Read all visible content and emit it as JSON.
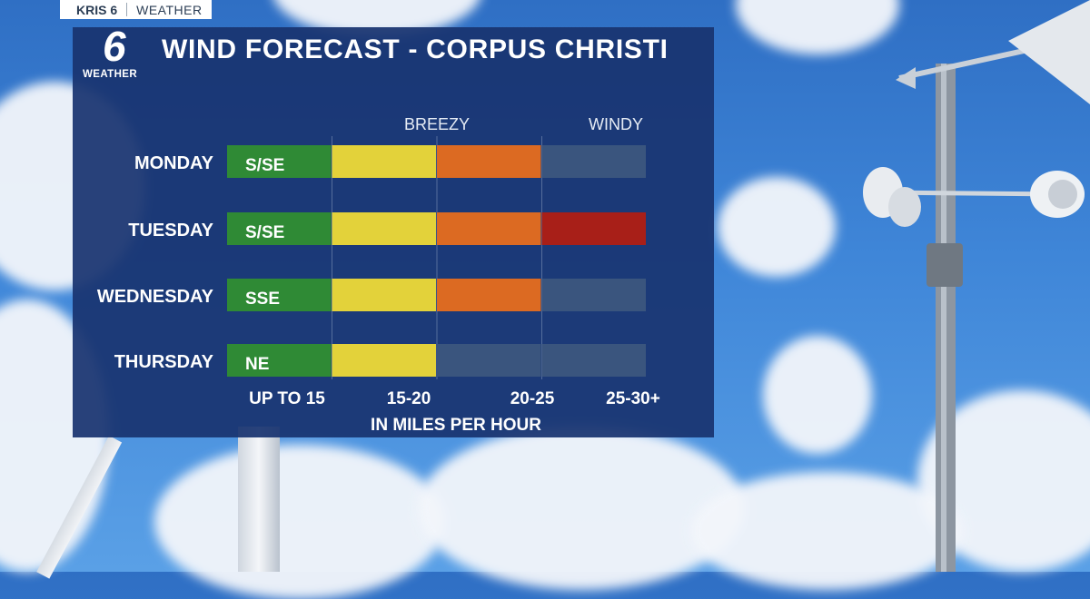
{
  "brand": {
    "station": "KRIS 6",
    "section": "WEATHER",
    "logo_number": "6",
    "logo_label": "WEATHER"
  },
  "title": "WIND FORECAST - CORPUS CHRISTI",
  "chart_data": {
    "type": "bar",
    "orientation": "horizontal",
    "title": "WIND FORECAST - CORPUS CHRISTI",
    "xlabel": "IN MILES PER HOUR",
    "ylabel": "",
    "bands": [
      "UP TO 15",
      "15-20",
      "20-25",
      "25-30+"
    ],
    "band_colors": [
      "#2f8a35",
      "#e3d23a",
      "#dc6a22",
      "#a81f18"
    ],
    "empty_color": "#3a557e",
    "zone_labels": [
      "BREEZY",
      "WINDY"
    ],
    "categories": [
      "MONDAY",
      "TUESDAY",
      "WEDNESDAY",
      "THURSDAY"
    ],
    "directions": [
      "S/SE",
      "S/SE",
      "SSE",
      "NE"
    ],
    "values": [
      3,
      4,
      3,
      2
    ],
    "values_unit": "highest band reached (1 = UP TO 15 ... 4 = 25-30+)",
    "grid": false,
    "legend": "none"
  }
}
